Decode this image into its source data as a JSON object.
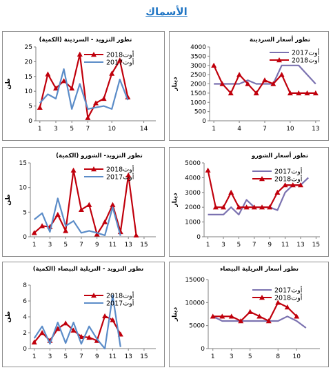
{
  "page": {
    "title": "الأسماك"
  },
  "chart_data": [
    {
      "id": "sardine-price",
      "type": "line",
      "title": "تطور أسعار السردينة",
      "ylabel": "دينار",
      "ylim": [
        0,
        4000
      ],
      "yticks": [
        0,
        500,
        1000,
        1500,
        2000,
        2500,
        3000,
        3500,
        4000
      ],
      "xlim": [
        0.5,
        13.5
      ],
      "xticks": [
        1,
        4,
        7,
        10,
        13
      ],
      "legend_position": "top-right",
      "series": [
        {
          "name": "أوت2017",
          "color": "#7b72b0",
          "marker": "none",
          "x": [
            1,
            2,
            3,
            4,
            5,
            6,
            7,
            8,
            9,
            10,
            11,
            12,
            13
          ],
          "values": [
            2000,
            2000,
            2000,
            2000,
            2200,
            2000,
            2000,
            2000,
            3000,
            3000,
            3000,
            2500,
            2000
          ]
        },
        {
          "name": "أوت2018",
          "color": "#c0000c",
          "marker": "triangle",
          "x": [
            1,
            2,
            3,
            4,
            5,
            6,
            7,
            8,
            9,
            10,
            11,
            12,
            13
          ],
          "values": [
            3000,
            2000,
            1500,
            2500,
            2000,
            1500,
            2200,
            2000,
            2500,
            1500,
            1500,
            1500,
            1500
          ]
        }
      ]
    },
    {
      "id": "sardine-supply",
      "type": "line",
      "title": "تطور التزويد - السردينة (الكمية)",
      "ylabel": "طن",
      "ylim": [
        0,
        25
      ],
      "yticks": [
        0,
        5,
        10,
        15,
        20,
        25
      ],
      "xlim": [
        0.5,
        15.5
      ],
      "xticks": [
        1,
        3,
        5,
        7,
        10,
        14
      ],
      "legend_position": "top-right",
      "series": [
        {
          "name": "أوت2018",
          "color": "#c0000c",
          "marker": "triangle",
          "x": [
            1,
            2,
            3,
            4,
            5,
            6,
            7,
            8,
            9,
            10,
            11,
            12,
            13
          ],
          "values": [
            4.5,
            15.8,
            11,
            13.5,
            11,
            22.5,
            1,
            6,
            7.5,
            16,
            20.5,
            8,
            null
          ]
        },
        {
          "name": "أوت2017",
          "color": "#5b8cc8",
          "marker": "none",
          "x": [
            1,
            2,
            3,
            4,
            5,
            6,
            7,
            8,
            9,
            10,
            11,
            12,
            13
          ],
          "values": [
            6,
            9,
            7.5,
            17.5,
            4,
            12.5,
            4,
            4.5,
            5,
            4,
            14,
            7,
            null
          ]
        }
      ]
    },
    {
      "id": "shorou-price",
      "type": "line",
      "title": "تطور أسعار الشورو",
      "ylabel": "دينار",
      "ylim": [
        0,
        5000
      ],
      "yticks": [
        0,
        1000,
        2000,
        3000,
        4000,
        5000
      ],
      "xlim": [
        0.5,
        15.5
      ],
      "xticks": [
        1,
        3,
        5,
        7,
        9,
        11,
        13,
        15
      ],
      "legend_position": "top-right",
      "series": [
        {
          "name": "أوت2017",
          "color": "#7b72b0",
          "marker": "none",
          "x": [
            1,
            2,
            3,
            4,
            5,
            6,
            7,
            8,
            9,
            10,
            11,
            12,
            13,
            14
          ],
          "values": [
            1500,
            1500,
            1500,
            2000,
            1500,
            2500,
            2000,
            2000,
            2000,
            1800,
            3000,
            3500,
            3500,
            4000
          ]
        },
        {
          "name": "أوت2018",
          "color": "#c0000c",
          "marker": "triangle",
          "x": [
            1,
            2,
            3,
            4,
            5,
            6,
            7,
            8,
            9,
            10,
            11,
            12,
            13,
            14
          ],
          "values": [
            4500,
            2000,
            2000,
            3000,
            2000,
            2000,
            2000,
            2000,
            2000,
            3000,
            3500,
            3500,
            3500,
            null
          ]
        }
      ]
    },
    {
      "id": "shorou-supply",
      "type": "line",
      "title": "تطور التزويد- الشورو (الكمية)",
      "ylabel": "طن",
      "ylim": [
        0,
        15
      ],
      "yticks": [
        0,
        5,
        10,
        15
      ],
      "xlim": [
        0.5,
        16.5
      ],
      "xticks": [
        1,
        3,
        5,
        7,
        9,
        11,
        13,
        15
      ],
      "legend_position": "top-right",
      "series": [
        {
          "name": "أوت2018",
          "color": "#c0000c",
          "marker": "triangle",
          "x": [
            1,
            2,
            3,
            4,
            5,
            6,
            7,
            8,
            9,
            10,
            11,
            12,
            13,
            14,
            15,
            16
          ],
          "values": [
            0.8,
            2.2,
            2,
            4.5,
            1.2,
            13.5,
            5.5,
            6.5,
            0.5,
            3,
            6.5,
            1,
            12.5,
            0.3,
            null,
            null
          ]
        },
        {
          "name": "أوت2017",
          "color": "#5b8cc8",
          "marker": "none",
          "x": [
            1,
            2,
            3,
            4,
            5,
            6,
            7,
            8,
            9,
            10,
            11,
            12,
            13,
            14,
            15,
            16
          ],
          "values": [
            3.5,
            4.8,
            1,
            7.8,
            2.2,
            3.2,
            0.8,
            1.2,
            0.8,
            0.3,
            6,
            0.2,
            null,
            null,
            null,
            null
          ]
        }
      ]
    },
    {
      "id": "bream-price",
      "type": "line",
      "title": "تطور أسعار التريلية البيضاء",
      "ylabel": "دينار",
      "ylim": [
        0,
        15000
      ],
      "yticks": [
        0,
        5000,
        10000,
        15000
      ],
      "xlim": [
        0.5,
        12.5
      ],
      "xticks": [
        1,
        3,
        5,
        8,
        10
      ],
      "legend_position": "top-right",
      "series": [
        {
          "name": "أوت2017",
          "color": "#7b72b0",
          "marker": "none",
          "x": [
            1,
            2,
            3,
            4,
            5,
            6,
            7,
            8,
            9,
            10,
            11,
            12
          ],
          "values": [
            7000,
            6000,
            6000,
            6000,
            6000,
            6000,
            6000,
            6000,
            7000,
            6000,
            4500,
            null
          ]
        },
        {
          "name": "أوت2018",
          "color": "#c0000c",
          "marker": "triangle",
          "x": [
            1,
            2,
            3,
            4,
            5,
            6,
            7,
            8,
            9,
            10,
            11,
            12
          ],
          "values": [
            7000,
            7000,
            7000,
            6000,
            8000,
            7000,
            6000,
            10000,
            9000,
            7000,
            null,
            null
          ]
        }
      ]
    },
    {
      "id": "bream-supply",
      "type": "line",
      "title": "تطور التزويد - التريلية البيضاء (الكمية)",
      "ylabel": "طن",
      "ylim": [
        0,
        8
      ],
      "yticks": [
        0,
        2,
        4,
        6,
        8
      ],
      "xlim": [
        0.5,
        16.5
      ],
      "xticks": [
        1,
        3,
        5,
        7,
        9,
        11,
        13,
        15
      ],
      "legend_position": "top-right",
      "series": [
        {
          "name": "أوت2018",
          "color": "#c0000c",
          "marker": "triangle",
          "x": [
            1,
            2,
            3,
            4,
            5,
            6,
            7,
            8,
            9,
            10,
            11,
            12,
            13,
            14,
            15,
            16
          ],
          "values": [
            0.8,
            2,
            1,
            2.5,
            3.2,
            2.3,
            1.5,
            1.4,
            1,
            4.1,
            3.6,
            1.8,
            null,
            null,
            null,
            null
          ]
        },
        {
          "name": "أوت2017",
          "color": "#5b8cc8",
          "marker": "none",
          "x": [
            1,
            2,
            3,
            4,
            5,
            6,
            7,
            8,
            9,
            10,
            11,
            12,
            13,
            14,
            15,
            16
          ],
          "values": [
            1.3,
            2.8,
            0.6,
            3.3,
            0.7,
            3.3,
            0.6,
            2.8,
            1.2,
            0,
            6.7,
            0.2,
            null,
            null,
            null,
            null
          ]
        }
      ]
    }
  ]
}
